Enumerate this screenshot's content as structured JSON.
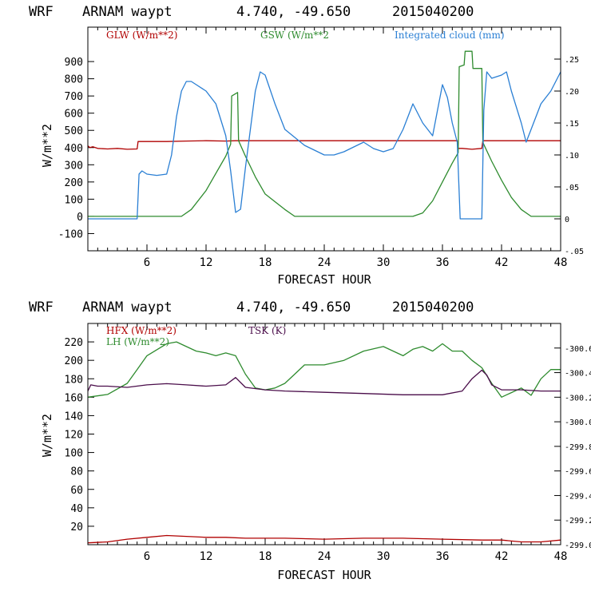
{
  "chart_data": [
    {
      "type": "line",
      "header": {
        "model": "WRF",
        "site": "ARNAM waypt",
        "coords": "4.740, -49.650",
        "datetime": "2015040200"
      },
      "xlabel": "FORECAST HOUR",
      "ylabel": "W/m**2",
      "xlim": [
        0,
        48
      ],
      "ylim": [
        -200,
        1100
      ],
      "y2lim": [
        -0.05,
        0.3
      ],
      "xticks": [
        6,
        12,
        18,
        24,
        30,
        36,
        42,
        48
      ],
      "xtick_labels": [
        "6",
        "12",
        "18",
        "24",
        "30",
        "36",
        "42",
        "48"
      ],
      "yticks": [
        -100,
        0,
        100,
        200,
        300,
        400,
        500,
        600,
        700,
        800,
        900
      ],
      "ytick_labels": [
        "-100",
        "0",
        "100",
        "200",
        "300",
        "400",
        "500",
        "600",
        "700",
        "800",
        "900"
      ],
      "y2ticks": [
        -0.05,
        0,
        0.05,
        0.1,
        0.15,
        0.2,
        0.25
      ],
      "y2tick_labels": [
        "-.05",
        "0",
        ".05",
        ".10",
        ".15",
        ".20",
        ".25"
      ],
      "series": [
        {
          "name": "GLW (W/m**2)",
          "color": "#b00000",
          "axis": "left",
          "x": [
            0,
            0.2,
            0.5,
            1,
            2,
            3,
            4,
            5,
            5.1,
            6,
            8,
            10,
            12,
            14,
            15,
            16,
            18,
            20,
            24,
            28,
            32,
            36,
            37.5,
            37.6,
            38,
            39,
            40,
            40.1,
            42,
            46,
            48
          ],
          "y": [
            410,
            400,
            405,
            395,
            392,
            395,
            390,
            392,
            435,
            435,
            435,
            438,
            440,
            438,
            440,
            440,
            440,
            440,
            440,
            440,
            440,
            440,
            440,
            395,
            395,
            390,
            395,
            440,
            440,
            440,
            440
          ]
        },
        {
          "name": "GSW (W/m**2",
          "color": "#2e8b2e",
          "axis": "left",
          "x": [
            0,
            9.5,
            10.5,
            12,
            13,
            14,
            14.5,
            14.6,
            15.2,
            15.3,
            16,
            17,
            18,
            20,
            21,
            22,
            30,
            33,
            34,
            35,
            36,
            37,
            37.6,
            37.7,
            38.2,
            38.3,
            39,
            39.1,
            40,
            40.1,
            41,
            42,
            43,
            44,
            45,
            46,
            48
          ],
          "y": [
            0,
            0,
            40,
            150,
            250,
            350,
            420,
            700,
            720,
            440,
            350,
            230,
            130,
            40,
            0,
            0,
            0,
            0,
            20,
            90,
            200,
            310,
            370,
            870,
            880,
            960,
            960,
            860,
            860,
            430,
            320,
            210,
            110,
            40,
            0,
            0,
            0
          ]
        },
        {
          "name": "Integrated cloud (mm)",
          "color": "#2a7fd4",
          "axis": "right",
          "x": [
            0,
            5,
            5.2,
            5.5,
            6,
            7,
            8,
            8.5,
            9,
            9.5,
            10,
            10.5,
            11,
            12,
            13,
            14,
            14.5,
            15,
            15.5,
            16,
            17,
            17.5,
            18,
            19,
            20,
            22,
            24,
            25,
            26,
            28,
            29,
            30,
            31,
            32,
            33,
            34,
            35,
            35.5,
            36,
            36.5,
            37,
            37.5,
            37.8,
            38.3,
            40,
            40.2,
            40.5,
            41,
            42,
            42.5,
            43,
            44,
            44.5,
            45,
            46,
            47,
            48
          ],
          "y": [
            0,
            0,
            0.07,
            0.075,
            0.07,
            0.068,
            0.07,
            0.1,
            0.16,
            0.2,
            0.215,
            0.215,
            0.21,
            0.2,
            0.18,
            0.13,
            0.075,
            0.01,
            0.015,
            0.08,
            0.2,
            0.23,
            0.225,
            0.18,
            0.14,
            0.115,
            0.1,
            0.1,
            0.105,
            0.12,
            0.11,
            0.105,
            0.11,
            0.14,
            0.18,
            0.15,
            0.13,
            0.17,
            0.21,
            0.19,
            0.15,
            0.12,
            0.0,
            0.0,
            0.0,
            0.17,
            0.23,
            0.22,
            0.225,
            0.23,
            0.2,
            0.15,
            0.12,
            0.14,
            0.18,
            0.2,
            0.23
          ]
        }
      ]
    },
    {
      "type": "line",
      "header": {
        "model": "WRF",
        "site": "ARNAM waypt",
        "coords": "4.740, -49.650",
        "datetime": "2015040200"
      },
      "xlabel": "FORECAST HOUR",
      "ylabel": "W/m**2",
      "xlim": [
        0,
        48
      ],
      "ylim": [
        0,
        240
      ],
      "y2lim": [
        299.0,
        300.8
      ],
      "xticks": [
        6,
        12,
        18,
        24,
        30,
        36,
        42,
        48
      ],
      "xtick_labels": [
        "6",
        "12",
        "18",
        "24",
        "30",
        "36",
        "42",
        "48"
      ],
      "yticks": [
        20,
        40,
        60,
        80,
        100,
        120,
        140,
        160,
        180,
        200,
        220
      ],
      "ytick_labels": [
        "20",
        "40",
        "60",
        "80",
        "100",
        "120",
        "140",
        "160",
        "180",
        "200",
        "220"
      ],
      "y2ticks": [
        299.0,
        299.2,
        299.4,
        299.6,
        299.8,
        300.0,
        300.2,
        300.4,
        300.6
      ],
      "y2tick_labels": [
        "299.0",
        "299.2",
        "299.4",
        "299.6",
        "299.8",
        "300.0",
        "300.2",
        "300.4",
        "300.6"
      ],
      "series": [
        {
          "name": "HFX (W/m**2)",
          "color": "#b00000",
          "axis": "left",
          "x": [
            0,
            2,
            4,
            6,
            8,
            10,
            12,
            14,
            16,
            18,
            20,
            24,
            28,
            30,
            32,
            36,
            40,
            42,
            44,
            46,
            48
          ],
          "y": [
            2,
            3,
            6,
            8,
            10,
            9,
            8,
            8,
            7,
            7,
            7,
            6,
            7,
            7,
            7,
            6,
            5,
            5,
            3,
            3,
            5
          ]
        },
        {
          "name": "LH (W/m**2)",
          "color": "#2e8b2e",
          "axis": "left",
          "x": [
            0,
            2,
            4,
            5,
            6,
            8,
            9,
            10,
            11,
            12,
            13,
            14,
            15,
            16,
            17,
            18,
            19,
            20,
            21,
            22,
            24,
            26,
            28,
            30,
            31,
            32,
            33,
            34,
            35,
            36,
            37,
            38,
            39,
            40,
            41,
            42,
            43,
            44,
            45,
            46,
            47,
            48
          ],
          "y": [
            160,
            163,
            175,
            190,
            205,
            218,
            220,
            215,
            210,
            208,
            205,
            208,
            205,
            185,
            170,
            168,
            170,
            175,
            185,
            195,
            195,
            200,
            210,
            215,
            210,
            205,
            212,
            215,
            210,
            218,
            210,
            210,
            200,
            192,
            175,
            160,
            165,
            170,
            162,
            180,
            190,
            190
          ]
        },
        {
          "name": "TSK (K)",
          "color": "#4a0d4a",
          "axis": "right",
          "x": [
            0,
            0.3,
            1,
            2,
            4,
            6,
            8,
            10,
            12,
            14,
            15,
            16,
            18,
            20,
            24,
            28,
            32,
            36,
            38,
            39,
            40,
            40.5,
            41,
            42,
            44,
            46,
            48
          ],
          "y": [
            300.25,
            300.3,
            300.29,
            300.29,
            300.28,
            300.3,
            300.31,
            300.3,
            300.29,
            300.3,
            300.36,
            300.28,
            300.26,
            300.25,
            300.24,
            300.23,
            300.22,
            300.22,
            300.25,
            300.35,
            300.42,
            300.38,
            300.3,
            300.26,
            300.26,
            300.25,
            300.25
          ]
        }
      ]
    }
  ]
}
